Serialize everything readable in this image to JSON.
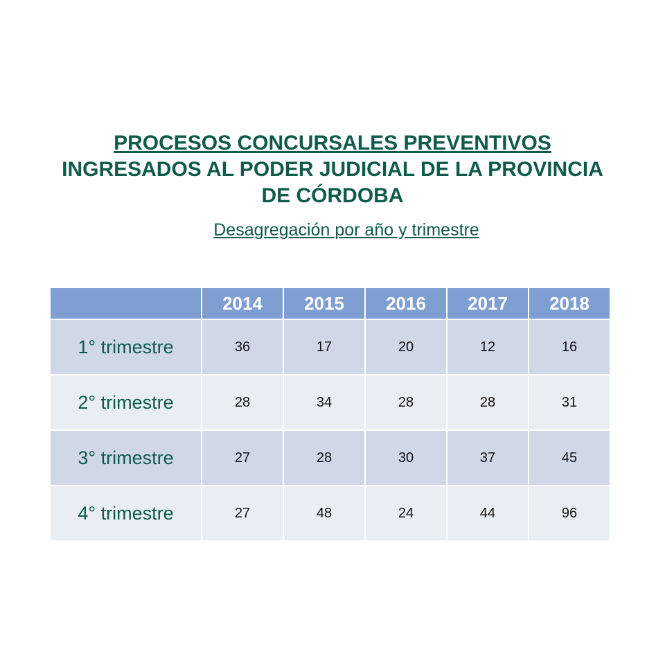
{
  "title": {
    "line1": "PROCESOS CONCURSALES PREVENTIVOS",
    "line2": "INGRESADOS AL PODER JUDICIAL DE LA PROVINCIA",
    "line3": "DE CÓRDOBA"
  },
  "subtitle": "Desagregación por año y trimestre",
  "table": {
    "corner": "",
    "headers": [
      "2014",
      "2015",
      "2016",
      "2017",
      "2018"
    ],
    "rows": [
      {
        "label": "1° trimestre",
        "values": [
          "36",
          "17",
          "20",
          "12",
          "16"
        ]
      },
      {
        "label": "2° trimestre",
        "values": [
          "28",
          "34",
          "28",
          "28",
          "31"
        ]
      },
      {
        "label": "3° trimestre",
        "values": [
          "27",
          "28",
          "30",
          "37",
          "45"
        ]
      },
      {
        "label": "4° trimestre",
        "values": [
          "27",
          "48",
          "24",
          "44",
          "96"
        ]
      }
    ]
  }
}
